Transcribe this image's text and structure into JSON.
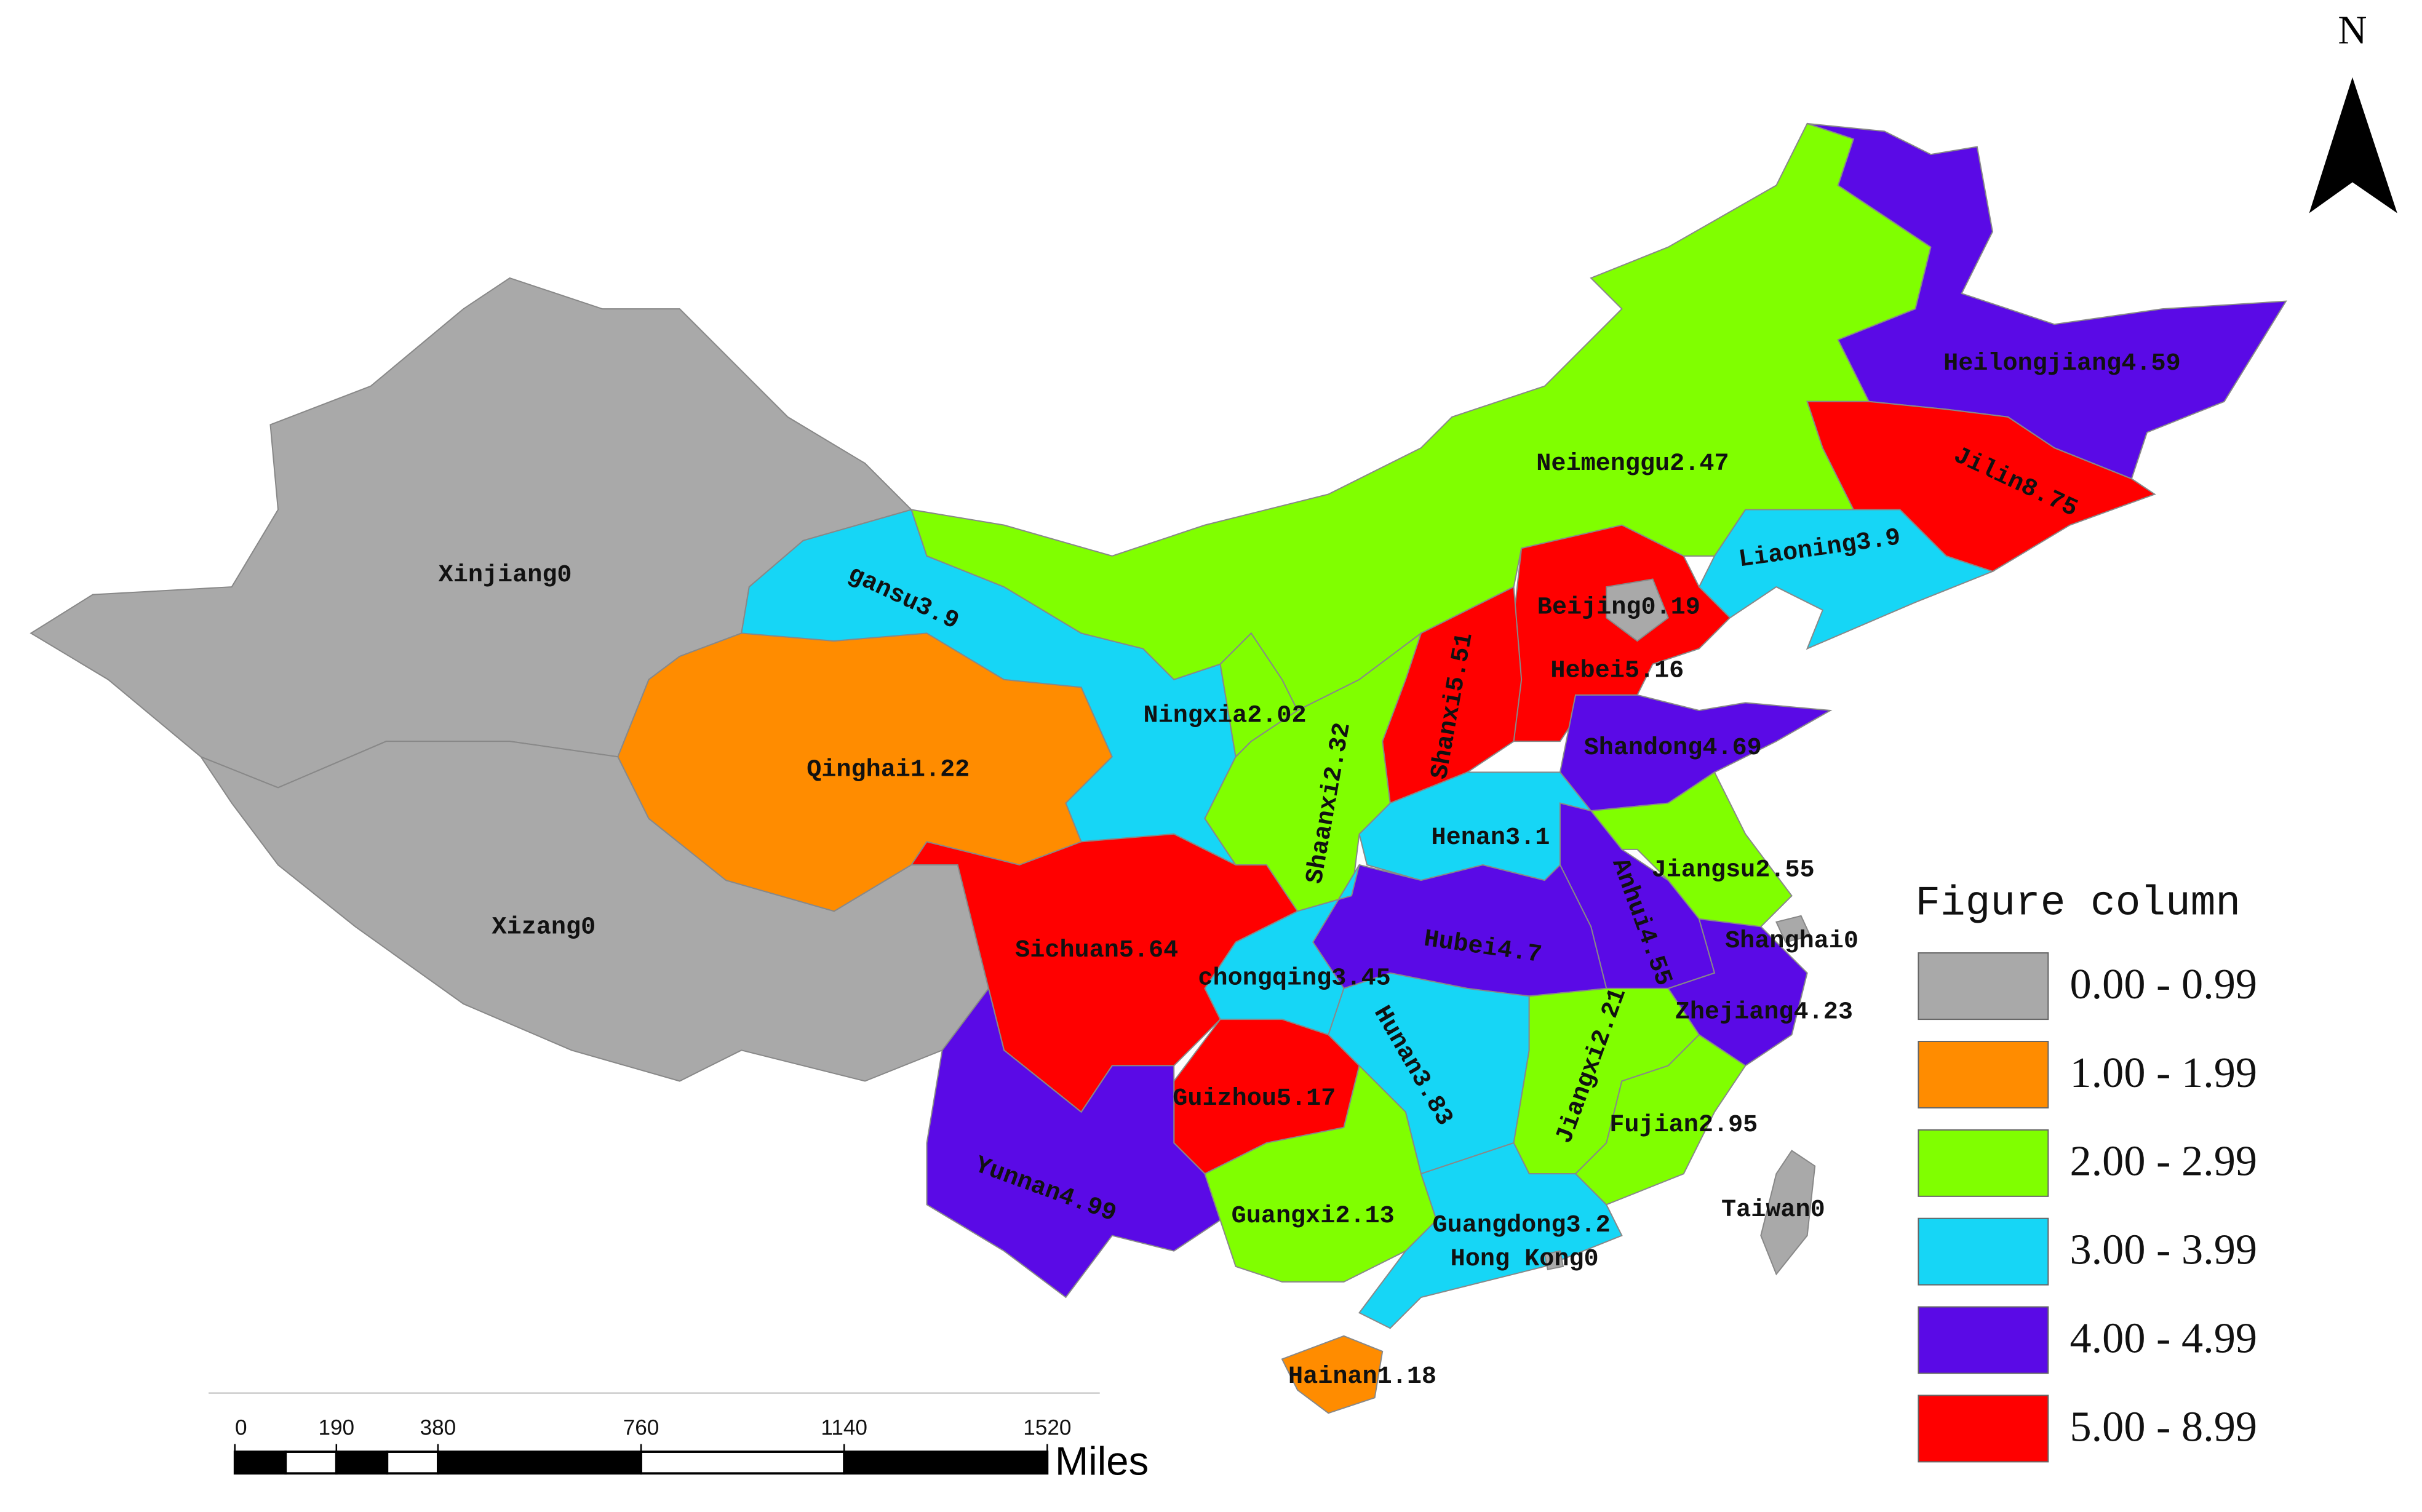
{
  "north": "N",
  "regions": [
    {
      "name": "Xinjiang",
      "value": 0,
      "color": "#a9a9a9"
    },
    {
      "name": "Xizang",
      "value": 0,
      "color": "#a9a9a9"
    },
    {
      "name": "Qinghai",
      "value": 1.22,
      "color": "#ff8c00"
    },
    {
      "name": "gansu",
      "value": 3.9,
      "color": "#16d6f6"
    },
    {
      "name": "Neimenggu",
      "value": 2.47,
      "color": "#80ff00"
    },
    {
      "name": "Heilongjiang",
      "value": 4.59,
      "color": "#5a0ae6"
    },
    {
      "name": "Jilin",
      "value": 8.75,
      "color": "#ff0000"
    },
    {
      "name": "Liaoning",
      "value": 3.9,
      "color": "#16d6f6"
    },
    {
      "name": "Hebei",
      "value": 5.16,
      "color": "#ff0000"
    },
    {
      "name": "Beijing",
      "value": 0.19,
      "color": "#a9a9a9"
    },
    {
      "name": "Shanxi",
      "value": 5.51,
      "color": "#ff0000"
    },
    {
      "name": "Shandong",
      "value": 4.69,
      "color": "#5a0ae6"
    },
    {
      "name": "Henan",
      "value": 3.1,
      "color": "#16d6f6"
    },
    {
      "name": "Shaanxi",
      "value": 2.32,
      "color": "#80ff00"
    },
    {
      "name": "Ningxia",
      "value": 2.02,
      "color": "#80ff00"
    },
    {
      "name": "Jiangsu",
      "value": 2.55,
      "color": "#80ff00"
    },
    {
      "name": "Anhui",
      "value": 4.55,
      "color": "#5a0ae6"
    },
    {
      "name": "Zhejiang",
      "value": 4.23,
      "color": "#5a0ae6"
    },
    {
      "name": "Shanghai",
      "value": 0,
      "color": "#a9a9a9"
    },
    {
      "name": "Hubei",
      "value": 4.7,
      "color": "#5a0ae6"
    },
    {
      "name": "chongqing",
      "value": 3.45,
      "color": "#16d6f6"
    },
    {
      "name": "Sichuan",
      "value": 5.64,
      "color": "#ff0000"
    },
    {
      "name": "Guizhou",
      "value": 5.17,
      "color": "#ff0000"
    },
    {
      "name": "Hunan",
      "value": 3.83,
      "color": "#16d6f6"
    },
    {
      "name": "Jiangxi",
      "value": 2.21,
      "color": "#80ff00"
    },
    {
      "name": "Fujian",
      "value": 2.95,
      "color": "#80ff00"
    },
    {
      "name": "Yunnan",
      "value": 4.99,
      "color": "#5a0ae6"
    },
    {
      "name": "Guangxi",
      "value": 2.13,
      "color": "#80ff00"
    },
    {
      "name": "Guangdong",
      "value": 3.2,
      "color": "#16d6f6"
    },
    {
      "name": "Hong Kong",
      "value": 0,
      "color": "#a9a9a9"
    },
    {
      "name": "Hainan",
      "value": 1.18,
      "color": "#ff8c00"
    },
    {
      "name": "Taiwan",
      "value": 0,
      "color": "#a9a9a9"
    }
  ],
  "legend": {
    "title": "Figure column",
    "items": [
      {
        "label": "0.00 - 0.99",
        "color": "#a9a9a9"
      },
      {
        "label": "1.00 - 1.99",
        "color": "#ff8c00"
      },
      {
        "label": "2.00 - 2.99",
        "color": "#80ff00"
      },
      {
        "label": "3.00 - 3.99",
        "color": "#16d6f6"
      },
      {
        "label": "4.00 - 4.99",
        "color": "#5a0ae6"
      },
      {
        "label": "5.00 - 8.99",
        "color": "#ff0000"
      }
    ]
  },
  "scale_bar": {
    "ticks": [
      0,
      190,
      380,
      760,
      1140,
      1520
    ],
    "unit": "Miles"
  }
}
